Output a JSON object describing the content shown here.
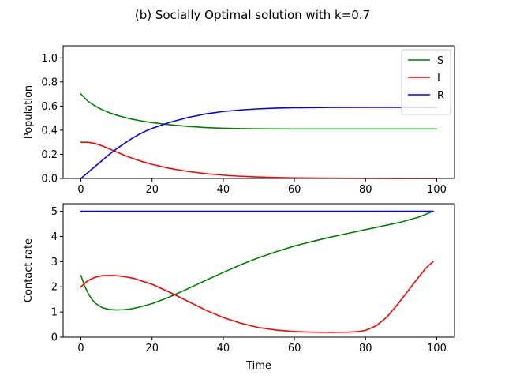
{
  "figure_title": "(b) Socially Optimal solution with k=0.7",
  "chart_data": [
    {
      "type": "line",
      "xlabel": "",
      "ylabel": "Population",
      "xlim": [
        -5,
        105
      ],
      "ylim": [
        0,
        1.1
      ],
      "xticks": [
        0,
        20,
        40,
        60,
        80,
        100
      ],
      "xtick_labels": [
        "0",
        "20",
        "40",
        "60",
        "80",
        "100"
      ],
      "yticks": [
        0,
        0.2,
        0.4,
        0.6,
        0.8,
        1.0
      ],
      "ytick_labels": [
        "0.0",
        "0.2",
        "0.4",
        "0.6",
        "0.8",
        "1.0"
      ],
      "legend": "top-right",
      "grid": false,
      "series": [
        {
          "name": "S",
          "color": "#008000",
          "x": [
            0,
            2,
            4,
            6,
            8,
            10,
            12,
            14,
            16,
            18,
            20,
            25,
            30,
            35,
            40,
            45,
            50,
            60,
            70,
            80,
            90,
            100
          ],
          "y": [
            0.7,
            0.64,
            0.6,
            0.57,
            0.545,
            0.525,
            0.508,
            0.494,
            0.482,
            0.472,
            0.463,
            0.445,
            0.432,
            0.422,
            0.416,
            0.413,
            0.411,
            0.41,
            0.41,
            0.41,
            0.41,
            0.41
          ]
        },
        {
          "name": "I",
          "color": "#ff0000",
          "x": [
            0,
            2,
            4,
            6,
            8,
            10,
            12,
            14,
            16,
            18,
            20,
            25,
            30,
            35,
            40,
            45,
            50,
            55,
            60,
            70,
            80,
            90,
            100
          ],
          "y": [
            0.3,
            0.3,
            0.29,
            0.27,
            0.245,
            0.22,
            0.195,
            0.172,
            0.152,
            0.133,
            0.117,
            0.083,
            0.058,
            0.04,
            0.027,
            0.018,
            0.012,
            0.008,
            0.005,
            0.002,
            0.001,
            0.0005,
            0.0003
          ]
        },
        {
          "name": "R",
          "color": "#0000ff",
          "x": [
            0,
            2,
            4,
            6,
            8,
            10,
            12,
            14,
            16,
            18,
            20,
            25,
            30,
            35,
            40,
            45,
            50,
            55,
            60,
            70,
            80,
            90,
            100
          ],
          "y": [
            0.0,
            0.05,
            0.1,
            0.15,
            0.2,
            0.245,
            0.285,
            0.325,
            0.36,
            0.39,
            0.415,
            0.465,
            0.505,
            0.535,
            0.555,
            0.568,
            0.577,
            0.583,
            0.586,
            0.589,
            0.59,
            0.59,
            0.59
          ]
        }
      ]
    },
    {
      "type": "line",
      "xlabel": "Time",
      "ylabel": "Contact rate",
      "xlim": [
        -5,
        105
      ],
      "ylim": [
        0,
        5.3
      ],
      "xticks": [
        0,
        20,
        40,
        60,
        80,
        100
      ],
      "xtick_labels": [
        "0",
        "20",
        "40",
        "60",
        "80",
        "100"
      ],
      "yticks": [
        0,
        1,
        2,
        3,
        4,
        5
      ],
      "ytick_labels": [
        "0",
        "1",
        "2",
        "3",
        "4",
        "5"
      ],
      "grid": false,
      "series": [
        {
          "name": "green",
          "color": "#008000",
          "x": [
            0,
            1,
            2,
            3,
            4,
            6,
            8,
            10,
            12,
            14,
            16,
            20,
            25,
            30,
            35,
            40,
            45,
            50,
            55,
            60,
            65,
            70,
            75,
            80,
            85,
            90,
            95,
            99
          ],
          "y": [
            2.45,
            2.05,
            1.75,
            1.52,
            1.35,
            1.17,
            1.1,
            1.08,
            1.09,
            1.12,
            1.18,
            1.33,
            1.6,
            1.92,
            2.25,
            2.57,
            2.88,
            3.16,
            3.4,
            3.62,
            3.8,
            3.97,
            4.12,
            4.27,
            4.42,
            4.57,
            4.77,
            5.0
          ]
        },
        {
          "name": "red",
          "color": "#ff0000",
          "x": [
            0,
            2,
            4,
            6,
            8,
            10,
            12,
            15,
            20,
            25,
            30,
            35,
            40,
            45,
            50,
            55,
            60,
            65,
            70,
            75,
            78,
            80,
            83,
            86,
            89,
            92,
            95,
            97,
            99
          ],
          "y": [
            2.0,
            2.25,
            2.38,
            2.44,
            2.45,
            2.44,
            2.41,
            2.33,
            2.1,
            1.78,
            1.43,
            1.08,
            0.78,
            0.55,
            0.38,
            0.28,
            0.22,
            0.2,
            0.19,
            0.2,
            0.22,
            0.27,
            0.45,
            0.8,
            1.3,
            1.85,
            2.4,
            2.75,
            3.0
          ]
        },
        {
          "name": "blue",
          "color": "#0000ff",
          "x": [
            0,
            99
          ],
          "y": [
            5.0,
            5.0
          ]
        }
      ]
    }
  ]
}
